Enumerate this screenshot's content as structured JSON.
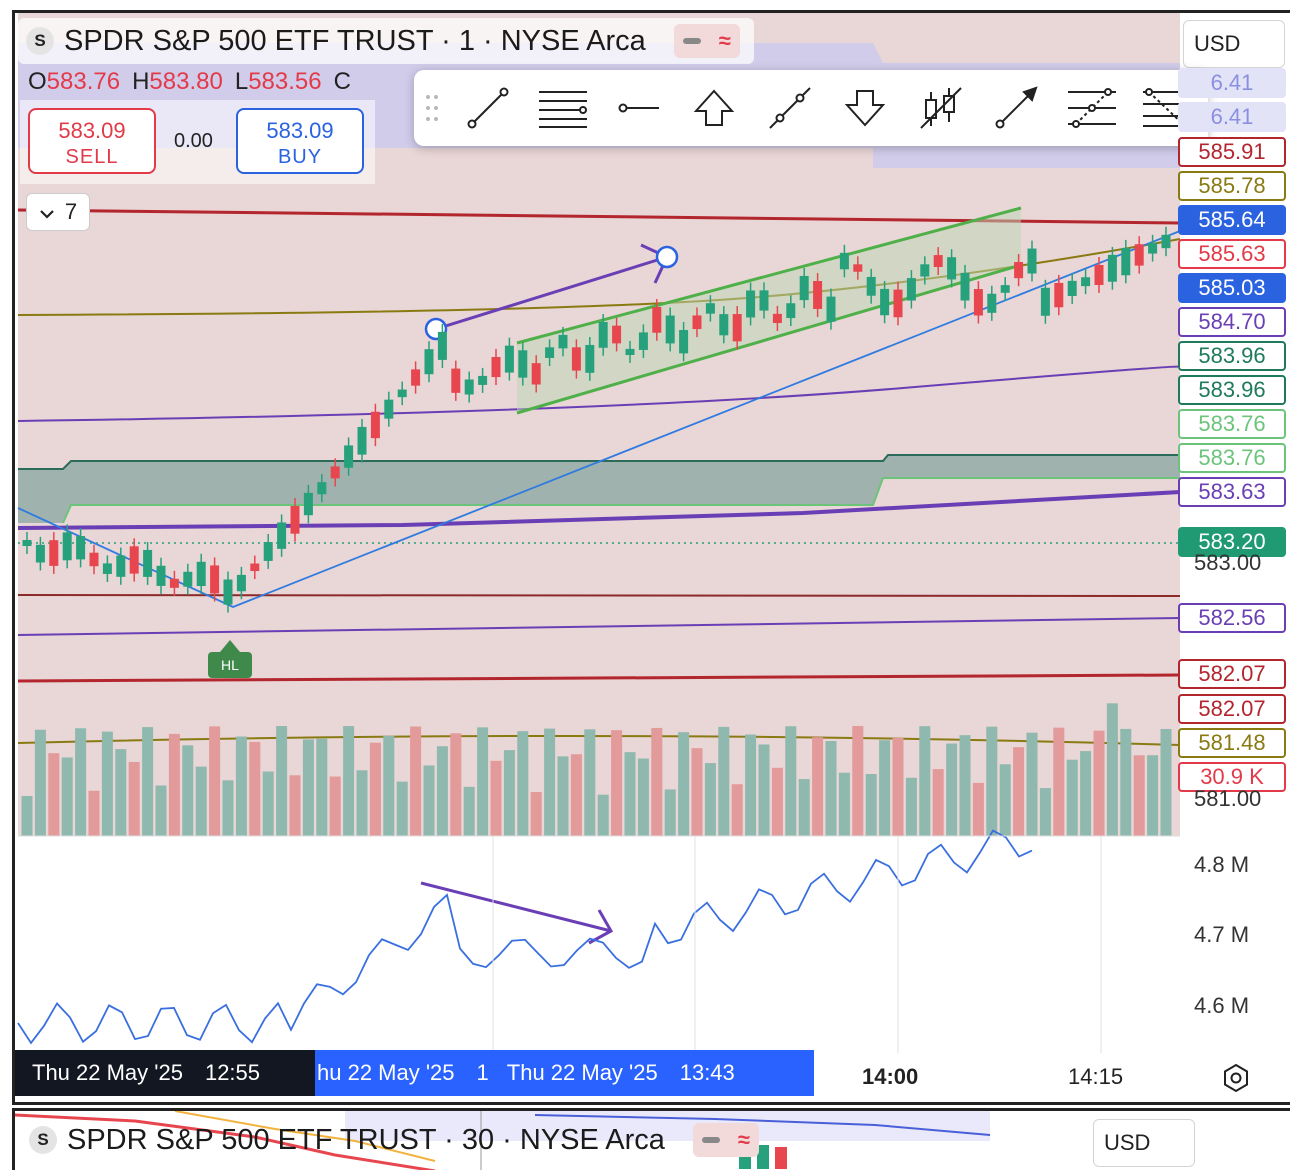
{
  "main_chart": {
    "symbol_logo": "S",
    "symbol_title": "SPDR S&P 500 ETF TRUST · 1 · NYSE Arca",
    "currency": "USD",
    "ohlc": {
      "o_label": "O",
      "o": "583.76",
      "h_label": "H",
      "h": "583.80",
      "l_label": "L",
      "l": "583.56",
      "c_label": "C"
    },
    "sell": {
      "price": "583.09",
      "label": "SELL"
    },
    "buy": {
      "price": "583.09",
      "label": "BUY"
    },
    "spread": "0.00",
    "indicators_collapsed_count": "7",
    "hl_badge": "HL",
    "price_labels": [
      {
        "text": "6.41",
        "color": "#8a8fe0",
        "style": "faded"
      },
      {
        "text": "6.41",
        "color": "#8a8fe0",
        "style": "faded"
      },
      {
        "text": "585.91",
        "color": "#b3262e",
        "style": "outline"
      },
      {
        "text": "585.78",
        "color": "#8a7a12",
        "style": "outline"
      },
      {
        "text": "585.64",
        "color": "#2a62e0",
        "style": "fill"
      },
      {
        "text": "585.63",
        "color": "#e23a48",
        "style": "outline"
      },
      {
        "text": "585.03",
        "color": "#2a62e0",
        "style": "fill"
      },
      {
        "text": "584.70",
        "color": "#6a3fb5",
        "style": "outline"
      },
      {
        "text": "583.96",
        "color": "#1f7a5c",
        "style": "outline"
      },
      {
        "text": "583.96",
        "color": "#1f7a5c",
        "style": "outline"
      },
      {
        "text": "583.76",
        "color": "#6cc47a",
        "style": "outline"
      },
      {
        "text": "583.76",
        "color": "#6cc47a",
        "style": "outline"
      },
      {
        "text": "583.63",
        "color": "#6a3fb5",
        "style": "outline"
      },
      {
        "text": "583.20",
        "color": "#1f9a72",
        "style": "fill"
      },
      {
        "text": "582.56",
        "color": "#6a3fb5",
        "style": "outline"
      },
      {
        "text": "582.07",
        "color": "#b3262e",
        "style": "outline"
      },
      {
        "text": "582.07",
        "color": "#b3262e",
        "style": "outline"
      },
      {
        "text": "581.48",
        "color": "#8a7a12",
        "style": "outline"
      },
      {
        "text": "30.9 K",
        "color": "#e23a48",
        "style": "outline"
      }
    ],
    "plain_prices": [
      "583.00",
      "581.00"
    ]
  },
  "volume_axis": [
    "4.8 M",
    "4.7 M",
    "4.6 M"
  ],
  "time_axis": {
    "crosshair_left": {
      "date": "Thu 22 May '25",
      "time": "12:55"
    },
    "crosshair_right": {
      "prefix": "hu 22 May '25",
      "mid": "1",
      "date": "Thu 22 May '25",
      "time": "13:43"
    },
    "ticks": [
      "14:00",
      "14:15"
    ]
  },
  "toolbar_tools": [
    "trend-line-tool",
    "parallel-lines-tool",
    "horizontal-ray-tool",
    "arrow-up-tool",
    "extended-line-tool",
    "arrow-down-tool",
    "candle-pattern-tool",
    "arrow-tool",
    "pitchfork-tool",
    "fib-retracement-tool"
  ],
  "bottom_chart": {
    "symbol_logo": "S",
    "symbol_title": "SPDR S&P 500 ETF TRUST · 30 · NYSE Arca",
    "currency": "USD"
  },
  "colors": {
    "up": "#26a17c",
    "down": "#e8464f",
    "pane_bg": "#e9d6d6",
    "channel": "#4fb04a",
    "trendline": "#2f7be0",
    "arrow": "#6a3fb5"
  }
}
